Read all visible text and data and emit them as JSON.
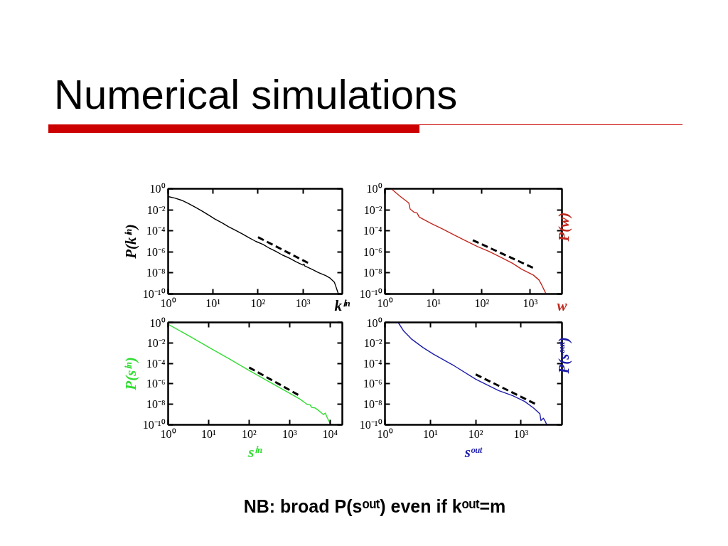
{
  "chart_data": [
    {
      "type": "line",
      "title": "Numerical simulations",
      "xlabel": "kⁱⁿ",
      "ylabel": "P(kⁱⁿ)",
      "log": "xy",
      "xlim": [
        1,
        7500
      ],
      "ylim": [
        1e-10,
        1
      ],
      "xticks": [
        {
          "value": 1,
          "label": "10⁰"
        },
        {
          "value": 10,
          "label": "10¹"
        },
        {
          "value": 100,
          "label": "10²"
        },
        {
          "value": 1000,
          "label": "10³"
        }
      ],
      "yticks": [
        {
          "value": 1e-10,
          "label": "10⁻¹⁰"
        },
        {
          "value": 1e-08,
          "label": "10⁻⁸"
        },
        {
          "value": 1e-06,
          "label": "10⁻⁶"
        },
        {
          "value": 0.0001,
          "label": "10⁻⁴"
        },
        {
          "value": 0.01,
          "label": "10⁻²"
        },
        {
          "value": 1,
          "label": "10⁰"
        }
      ],
      "series": [
        {
          "color": "#000000",
          "x": [
            1,
            1.41,
            2,
            2.8,
            4,
            5.6,
            7.9,
            11,
            16,
            22,
            32,
            45,
            63,
            89,
            130,
            180,
            250,
            350,
            500,
            710,
            1000,
            1050,
            1100,
            1600,
            2200,
            3200,
            4000,
            4500,
            5000,
            5200,
            5600,
            5900,
            6200
          ],
          "values": [
            0.18,
            0.13,
            0.08,
            0.04,
            0.018,
            0.008,
            0.0032,
            0.0013,
            0.00056,
            0.00025,
            0.00011,
            5e-05,
            2.2e-05,
            1e-05,
            5e-06,
            2.2e-06,
            1.1e-06,
            5e-07,
            2.5e-07,
            1.1e-07,
            5.6e-08,
            7e-08,
            4.5e-08,
            2.2e-08,
            1.1e-08,
            5.6e-09,
            3.2e-09,
            2e-09,
            1.3e-09,
            8e-10,
            3.2e-10,
            1.6e-10,
            1e-10
          ]
        },
        {
          "color": "#000000",
          "line_style": "dashed",
          "x": [
            100,
            1500
          ],
          "values": [
            2.5e-05,
            6.5e-08
          ]
        }
      ]
    },
    {
      "type": "line",
      "xlabel": "w",
      "ylabel": "P(w)",
      "log": "xy",
      "xlim": [
        1,
        4500
      ],
      "ylim": [
        1e-10,
        1
      ],
      "xticks": [
        {
          "value": 1,
          "label": "10⁰"
        },
        {
          "value": 10,
          "label": "10¹"
        },
        {
          "value": 100,
          "label": "10²"
        },
        {
          "value": 1000,
          "label": "10³"
        }
      ],
      "yticks": [
        {
          "value": 1e-10,
          "label": "10⁻¹⁰"
        },
        {
          "value": 1e-08,
          "label": "10⁻⁸"
        },
        {
          "value": 1e-06,
          "label": "10⁻⁶"
        },
        {
          "value": 0.0001,
          "label": "10⁻⁴"
        },
        {
          "value": 0.01,
          "label": "10⁻²"
        },
        {
          "value": 1,
          "label": "10⁰"
        }
      ],
      "series": [
        {
          "color": "#c0281e",
          "x": [
            1.35,
            2,
            3.1,
            3.3,
            3.9,
            4.6,
            5.1,
            9,
            15.5,
            27,
            47,
            80,
            140,
            250,
            430,
            660,
            1150,
            1500,
            1700,
            2000,
            2100
          ],
          "values": [
            1,
            0.21,
            0.045,
            0.012,
            0.0063,
            0.005,
            0.002,
            0.0005,
            0.00015,
            4e-05,
            1.1e-05,
            3.3e-06,
            1.1e-06,
            3e-07,
            8.3e-08,
            2.3e-08,
            6.3e-09,
            2.2e-09,
            7.9e-10,
            1.7e-10,
            1e-10
          ]
        },
        {
          "color": "#000000",
          "line_style": "dashed",
          "x": [
            65,
            1150
          ],
          "values": [
            1.3e-05,
            3e-08
          ]
        }
      ]
    },
    {
      "type": "line",
      "xlabel": "sⁱⁿ",
      "ylabel": "P(sⁱⁿ)",
      "log": "xy",
      "xlim": [
        1,
        20000
      ],
      "ylim": [
        1e-10,
        1
      ],
      "xticks": [
        {
          "value": 1,
          "label": "10⁰"
        },
        {
          "value": 10,
          "label": "10¹"
        },
        {
          "value": 100,
          "label": "10²"
        },
        {
          "value": 1000,
          "label": "10³"
        },
        {
          "value": 10000,
          "label": "10⁴"
        }
      ],
      "yticks": [
        {
          "value": 1e-10,
          "label": "10⁻¹⁰"
        },
        {
          "value": 1e-08,
          "label": "10⁻⁸"
        },
        {
          "value": 1e-06,
          "label": "10⁻⁶"
        },
        {
          "value": 0.0001,
          "label": "10⁻⁴"
        },
        {
          "value": 0.01,
          "label": "10⁻²"
        },
        {
          "value": 1,
          "label": "10⁰"
        }
      ],
      "series": [
        {
          "color": "#33dd33",
          "x": [
            1,
            3.2,
            10,
            32,
            100,
            320,
            1000,
            1800,
            2700,
            3200,
            3500,
            4200,
            5200,
            6300,
            6900,
            7600,
            8500,
            9500,
            10200
          ],
          "values": [
            0.66,
            0.05,
            0.0038,
            0.00028,
            2e-05,
            1.5e-06,
            1.2e-07,
            3.2e-08,
            1e-08,
            8.9e-09,
            5e-09,
            4.5e-09,
            2.5e-09,
            1.3e-09,
            1e-09,
            1.4e-09,
            5e-10,
            2e-10,
            1e-10
          ]
        },
        {
          "color": "#000000",
          "line_style": "dashed",
          "x": [
            100,
            1860
          ],
          "values": [
            4e-05,
            6.3e-08
          ]
        }
      ]
    },
    {
      "type": "line",
      "xlabel": "sᵒᵘᵗ",
      "ylabel": "P(sᵒᵘᵗ)",
      "log": "xy",
      "xlim": [
        1,
        8000
      ],
      "ylim": [
        1e-10,
        1
      ],
      "xticks": [
        {
          "value": 1,
          "label": "10⁰"
        },
        {
          "value": 10,
          "label": "10¹"
        },
        {
          "value": 100,
          "label": "10²"
        },
        {
          "value": 1000,
          "label": "10³"
        }
      ],
      "yticks": [
        {
          "value": 1e-10,
          "label": "10⁻¹⁰"
        },
        {
          "value": 1e-08,
          "label": "10⁻⁸"
        },
        {
          "value": 1e-06,
          "label": "10⁻⁶"
        },
        {
          "value": 0.0001,
          "label": "10⁻⁴"
        },
        {
          "value": 0.01,
          "label": "10⁻²"
        },
        {
          "value": 1,
          "label": "10⁰"
        }
      ],
      "annotations": [
        "NB: broad P(sᵒᵘᵗ) even if kᵒᵘᵗ=m"
      ],
      "series": [
        {
          "color": "#1c1caa",
          "x": [
            1.95,
            2.6,
            3.8,
            6.9,
            11.7,
            34,
            100,
            320,
            660,
            1200,
            1900,
            2600,
            2750,
            3100,
            3450,
            3700
          ],
          "values": [
            1,
            0.14,
            0.025,
            0.0035,
            0.0008,
            5.6e-05,
            2.8e-06,
            2.2e-07,
            6.8e-08,
            1.9e-08,
            4.3e-09,
            1.2e-09,
            2.6e-10,
            4.4e-10,
            2e-10,
            1e-10
          ]
        },
        {
          "color": "#000000",
          "line_style": "dashed",
          "x": [
            100,
            2150
          ],
          "values": [
            8.4e-06,
            1e-08
          ]
        }
      ]
    }
  ]
}
